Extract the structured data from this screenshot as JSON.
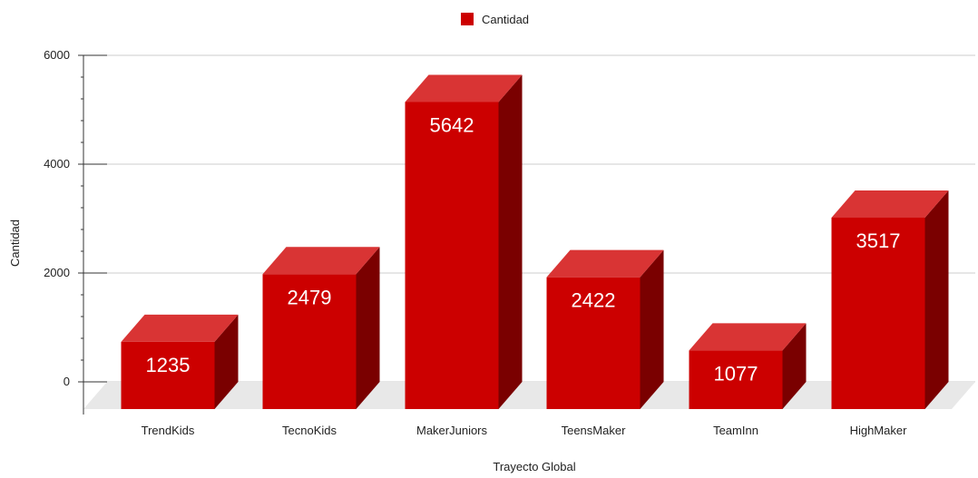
{
  "chart_data": {
    "type": "bar",
    "style": "3d",
    "categories": [
      "TrendKids",
      "TecnoKids",
      "MakerJuniors",
      "TeensMaker",
      "TeamInn",
      "HighMaker"
    ],
    "series": [
      {
        "name": "Cantidad",
        "values": [
          1235,
          2479,
          5642,
          2422,
          1077,
          3517
        ]
      }
    ],
    "data_labels": [
      "1235",
      "2479",
      "5642",
      "2422",
      "1077",
      "3517"
    ],
    "xlabel": "Trayecto Global",
    "ylabel": "Cantidad",
    "ylim": [
      0,
      6000
    ],
    "yticks": [
      0,
      2000,
      4000,
      6000
    ],
    "ytick_labels": [
      "0",
      "2000",
      "4000",
      "6000"
    ],
    "grid": true,
    "legend": {
      "position": "top-center",
      "label": "Cantidad"
    },
    "colors": {
      "bar_front": "#cc0000",
      "bar_top": "#d93434",
      "bar_side": "#7a0000",
      "floor": "#e8e8e8",
      "grid": "#cccccc"
    }
  }
}
